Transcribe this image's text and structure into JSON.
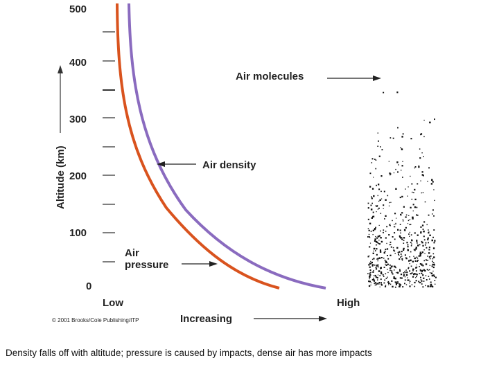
{
  "figure": {
    "y_axis_title": "Altitude (km)",
    "y_tick_labels": [
      "500",
      "400",
      "300",
      "200",
      "100",
      "0"
    ],
    "x_labels": {
      "low": "Low",
      "high": "High",
      "increasing": "Increasing"
    },
    "annotations": {
      "air_molecules": "Air molecules",
      "air_density": "Air density",
      "air_pressure_line1": "Air",
      "air_pressure_line2": "pressure"
    },
    "copyright": "© 2001 Brooks/Cole Publishing/ITP",
    "colors": {
      "pressure_curve": "#d9531e",
      "density_curve": "#8a6bbf",
      "ink": "#222222"
    }
  },
  "caption": "Density falls off with altitude; pressure is caused by impacts, dense air has more impacts"
}
